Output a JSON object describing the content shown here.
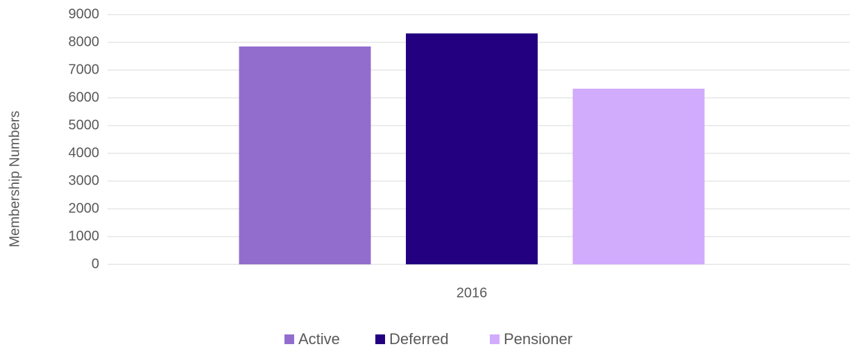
{
  "chart_data": {
    "type": "bar",
    "ylabel": "Membership Numbers",
    "categories": [
      "2016"
    ],
    "series": [
      {
        "name": "Active",
        "color": "#926dce",
        "values": [
          7850
        ]
      },
      {
        "name": "Deferred",
        "color": "#22007f",
        "values": [
          8320
        ]
      },
      {
        "name": "Pensioner",
        "color": "#d1abfc",
        "values": [
          6330
        ]
      }
    ],
    "ylim": [
      0,
      9000
    ],
    "yticks": [
      0,
      1000,
      2000,
      3000,
      4000,
      5000,
      6000,
      7000,
      8000,
      9000
    ],
    "grid": true,
    "legend": "bottom"
  }
}
